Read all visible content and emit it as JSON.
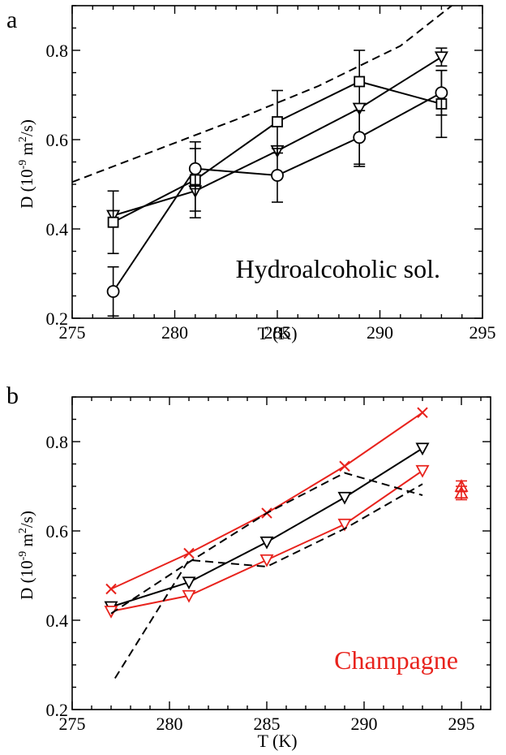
{
  "chart_data": [
    {
      "panel_label": "a",
      "type": "line",
      "annotation": "Hydroalcoholic sol.",
      "xlabel": "T (K)",
      "ylabel_main": "D (10",
      "ylabel_exp1": "-9",
      "ylabel_mid": " m",
      "ylabel_exp2": "2",
      "ylabel_end": "/s)",
      "xlim": [
        275,
        295
      ],
      "ylim": [
        0.2,
        0.9
      ],
      "xticks": [
        275,
        280,
        285,
        290,
        295
      ],
      "yticks": [
        0.2,
        0.4,
        0.6,
        0.8
      ],
      "colors": {
        "black": "#000000"
      },
      "series": [
        {
          "marker": "triangle-down",
          "color": "#000000",
          "dash": "solid",
          "x": [
            277,
            281,
            285,
            289,
            293
          ],
          "y": [
            0.43,
            0.485,
            0.575,
            0.67,
            0.785
          ],
          "err": [
            0,
            0.045,
            0,
            0.13,
            0.02
          ]
        },
        {
          "marker": "square",
          "color": "#000000",
          "dash": "solid",
          "x": [
            277,
            281,
            285,
            289,
            293
          ],
          "y": [
            0.415,
            0.51,
            0.64,
            0.73,
            0.68
          ],
          "err": [
            0.07,
            0.085,
            0.07,
            0,
            0.075
          ]
        },
        {
          "marker": "circle",
          "color": "#000000",
          "dash": "solid",
          "x": [
            277,
            281,
            285,
            289,
            293
          ],
          "y": [
            0.26,
            0.535,
            0.52,
            0.605,
            0.705
          ],
          "err": [
            0.055,
            0.045,
            0.06,
            0.06,
            0.05
          ]
        },
        {
          "marker": "none",
          "color": "#000000",
          "dash": "dashed",
          "x": [
            275,
            279,
            283,
            287,
            291,
            293.5
          ],
          "y": [
            0.505,
            0.575,
            0.645,
            0.72,
            0.81,
            0.9
          ],
          "err": []
        }
      ]
    },
    {
      "panel_label": "b",
      "type": "line",
      "annotation": "Champagne",
      "xlabel": "T (K)",
      "ylabel_main": "D (10",
      "ylabel_exp1": "-9",
      "ylabel_mid": " m",
      "ylabel_exp2": "2",
      "ylabel_end": "/s)",
      "xlim": [
        275,
        296.5
      ],
      "ylim": [
        0.2,
        0.9
      ],
      "xticks": [
        275,
        280,
        285,
        290,
        295
      ],
      "yticks": [
        0.2,
        0.4,
        0.6,
        0.8
      ],
      "colors": {
        "red": "#e8231d",
        "black": "#000000"
      },
      "series": [
        {
          "marker": "x",
          "color": "#e8231d",
          "dash": "solid",
          "x": [
            277,
            281,
            285,
            289,
            293
          ],
          "y": [
            0.47,
            0.55,
            0.64,
            0.745,
            0.865
          ],
          "err": []
        },
        {
          "marker": "triangle-down",
          "color": "#000000",
          "dash": "solid",
          "x": [
            277,
            281,
            285,
            289,
            293
          ],
          "y": [
            0.43,
            0.485,
            0.575,
            0.675,
            0.785
          ],
          "err": []
        },
        {
          "marker": "triangle-down",
          "color": "#e8231d",
          "dash": "solid",
          "x": [
            277,
            281,
            285,
            289,
            293
          ],
          "y": [
            0.42,
            0.455,
            0.535,
            0.615,
            0.735
          ],
          "err": []
        },
        {
          "marker": "none",
          "color": "#000000",
          "dash": "dashed",
          "x": [
            277,
            281,
            285,
            289,
            293
          ],
          "y": [
            0.415,
            0.53,
            0.64,
            0.73,
            0.68
          ],
          "err": []
        },
        {
          "marker": "none",
          "color": "#000000",
          "dash": "dashed",
          "x": [
            277.2,
            281,
            285,
            289,
            293
          ],
          "y": [
            0.27,
            0.535,
            0.52,
            0.605,
            0.705
          ],
          "err": []
        },
        {
          "marker": "triangle-up",
          "color": "#e8231d",
          "dash": "none",
          "x": [
            295,
            295
          ],
          "y": [
            0.7,
            0.685
          ],
          "err": [
            0.012,
            0.015
          ]
        }
      ]
    }
  ]
}
